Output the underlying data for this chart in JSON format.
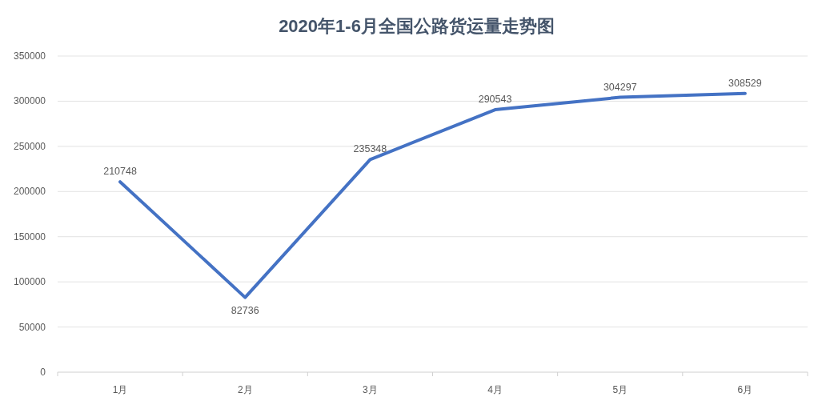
{
  "chart_data": {
    "type": "line",
    "title": "2020年1-6月全国公路货运量走势图",
    "categories": [
      "1月",
      "2月",
      "3月",
      "4月",
      "5月",
      "6月"
    ],
    "values": [
      210748,
      82736,
      235348,
      290543,
      304297,
      308529
    ],
    "color": "#4472c4",
    "ylim": [
      0,
      350000
    ],
    "yticks": [
      0,
      50000,
      100000,
      150000,
      200000,
      250000,
      300000,
      350000
    ],
    "grid": "y",
    "data_labels": true,
    "marker": "none",
    "line_style": "solid"
  }
}
